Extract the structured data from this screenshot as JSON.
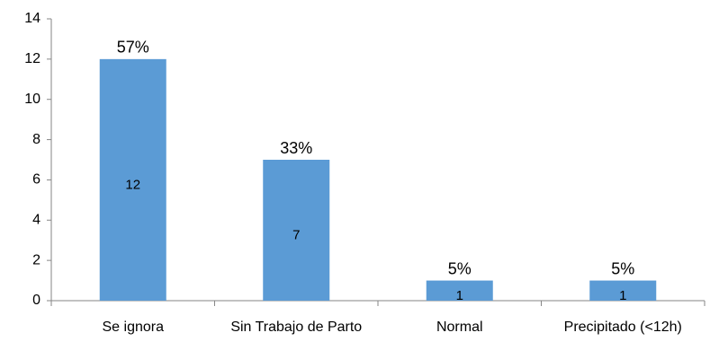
{
  "chart_data": {
    "type": "bar",
    "categories": [
      "Se ignora",
      "Sin Trabajo de Parto",
      "Normal",
      "Precipitado (<12h)"
    ],
    "values": [
      12,
      7,
      1,
      1
    ],
    "percent_labels": [
      "57%",
      "33%",
      "5%",
      "5%"
    ],
    "color": "#5b9bd5",
    "ylim": [
      0,
      14
    ],
    "yticks": [
      0,
      2,
      4,
      6,
      8,
      10,
      12,
      14
    ],
    "grid": false
  }
}
